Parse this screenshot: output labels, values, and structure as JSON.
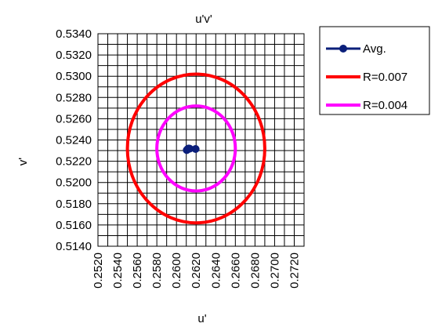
{
  "chart_data": {
    "type": "scatter",
    "title": "u'v'",
    "xlabel": "u'",
    "ylabel": "v'",
    "xlim": [
      0.252,
      0.273
    ],
    "ylim": [
      0.514,
      0.534
    ],
    "x_ticks": [
      "0.2520",
      "0.2540",
      "0.2560",
      "0.2580",
      "0.2600",
      "0.2620",
      "0.2640",
      "0.2660",
      "0.2680",
      "0.2700",
      "0.2720"
    ],
    "y_ticks": [
      "0.5340",
      "0.5320",
      "0.5300",
      "0.5280",
      "0.5260",
      "0.5240",
      "0.5220",
      "0.5200",
      "0.5180",
      "0.5160",
      "0.5140"
    ],
    "grid": true,
    "legend_position": "right",
    "series": [
      {
        "name": "Avg.",
        "color": "#0b1f7a",
        "marker": "circle",
        "points": [
          {
            "x": 0.26105,
            "y": 0.52305
          },
          {
            "x": 0.26115,
            "y": 0.52315
          },
          {
            "x": 0.26125,
            "y": 0.5232
          },
          {
            "x": 0.26135,
            "y": 0.52318
          },
          {
            "x": 0.26195,
            "y": 0.52315
          }
        ]
      },
      {
        "name": "R=0.007",
        "color": "#ff0000",
        "shape": "circle",
        "center": {
          "x": 0.262,
          "y": 0.5232
        },
        "radius": 0.007
      },
      {
        "name": "R=0.004",
        "color": "#ff00ff",
        "shape": "circle",
        "center": {
          "x": 0.262,
          "y": 0.5232
        },
        "radius": 0.004
      }
    ]
  }
}
